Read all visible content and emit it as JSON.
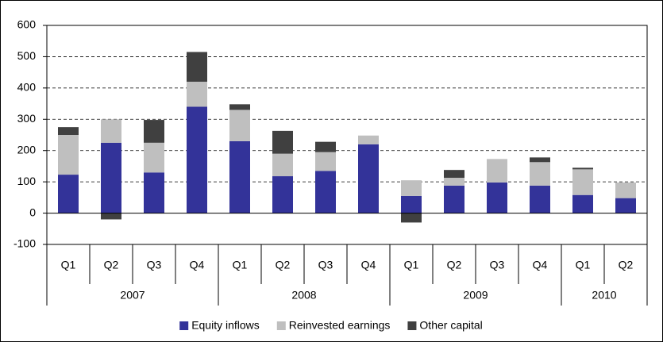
{
  "chart_data": {
    "type": "bar",
    "stacked": true,
    "groups": [
      {
        "name": "2007",
        "categories": [
          "Q1",
          "Q2",
          "Q3",
          "Q4"
        ]
      },
      {
        "name": "2008",
        "categories": [
          "Q1",
          "Q2",
          "Q3",
          "Q4"
        ]
      },
      {
        "name": "2009",
        "categories": [
          "Q1",
          "Q2",
          "Q3",
          "Q4"
        ]
      },
      {
        "name": "2010",
        "categories": [
          "Q1",
          "Q2"
        ]
      }
    ],
    "series": [
      {
        "name": "Equity inflows",
        "color": "#333399",
        "values": [
          123,
          225,
          130,
          340,
          230,
          118,
          135,
          220,
          55,
          88,
          98,
          88,
          58,
          48
        ]
      },
      {
        "name": "Reinvested earnings",
        "color": "#bfbfbf",
        "values": [
          127,
          75,
          95,
          80,
          100,
          72,
          60,
          28,
          50,
          25,
          75,
          75,
          82,
          50
        ]
      },
      {
        "name": "Other capital",
        "color": "#404040",
        "values": [
          25,
          -20,
          73,
          95,
          18,
          73,
          33,
          0,
          -30,
          25,
          0,
          15,
          5,
          0
        ]
      }
    ],
    "ylim": [
      -100,
      600
    ],
    "yticks": [
      -100,
      0,
      100,
      200,
      300,
      400,
      500,
      600
    ],
    "grid": true,
    "legend": "bottom"
  }
}
